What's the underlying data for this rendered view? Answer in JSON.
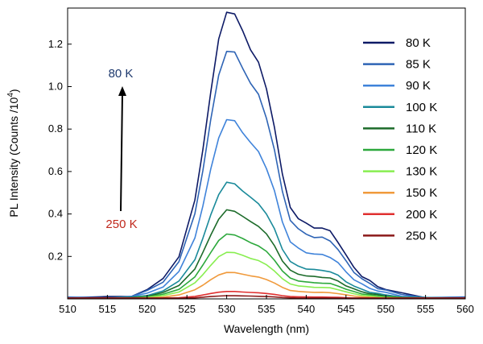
{
  "chart_data": {
    "type": "line",
    "xlabel": "Wavelength (nm)",
    "ylabel_main": "PL Intensity (Counts /10",
    "ylabel_sup": "4",
    "ylabel_close": ")",
    "xlim": [
      510,
      560
    ],
    "ylim": [
      0,
      1.37
    ],
    "x_ticks": [
      510,
      515,
      520,
      525,
      530,
      535,
      540,
      545,
      550,
      555,
      560
    ],
    "y_ticks": [
      0.2,
      0.4,
      0.6,
      0.8,
      1.0,
      1.2
    ],
    "y_tick_labels": [
      "0.2",
      "0.4",
      "0.6",
      "0.8",
      "1.0",
      "1.2"
    ],
    "grid": false,
    "legend_position": "top-right",
    "shape": {
      "x": [
        510,
        515,
        518,
        520,
        522,
        524,
        526,
        527,
        528,
        529,
        530,
        531,
        532,
        533,
        534,
        535,
        536,
        537,
        538,
        539,
        540,
        541,
        542,
        543,
        544,
        545,
        546,
        547,
        548,
        549,
        550,
        552,
        555,
        560
      ],
      "y": [
        0.004,
        0.005,
        0.012,
        0.03,
        0.07,
        0.15,
        0.34,
        0.52,
        0.72,
        0.9,
        1.0,
        0.99,
        0.93,
        0.87,
        0.82,
        0.73,
        0.6,
        0.43,
        0.32,
        0.28,
        0.26,
        0.25,
        0.245,
        0.235,
        0.2,
        0.15,
        0.11,
        0.08,
        0.06,
        0.045,
        0.033,
        0.018,
        0.008,
        0.004
      ]
    },
    "series": [
      {
        "name": "80 K",
        "peak": 1.355,
        "color": "#0d1a66"
      },
      {
        "name": "85 K",
        "peak": 1.17,
        "color": "#2e64b5"
      },
      {
        "name": "90 K",
        "peak": 0.845,
        "color": "#3f83da"
      },
      {
        "name": "100 K",
        "peak": 0.548,
        "color": "#1a8a9a"
      },
      {
        "name": "110 K",
        "peak": 0.418,
        "color": "#1c6b2a"
      },
      {
        "name": "120 K",
        "peak": 0.305,
        "color": "#2ca83c"
      },
      {
        "name": "130 K",
        "peak": 0.22,
        "color": "#88ee50"
      },
      {
        "name": "150 K",
        "peak": 0.125,
        "color": "#f09a3c"
      },
      {
        "name": "200 K",
        "peak": 0.035,
        "color": "#e03030"
      },
      {
        "name": "250 K",
        "peak": 0.015,
        "color": "#8b1a1a"
      }
    ],
    "annotations": {
      "top_label": "80 K",
      "top_color": "#1f3a6e",
      "bottom_label": "250 K",
      "bottom_color": "#c0281c"
    }
  }
}
